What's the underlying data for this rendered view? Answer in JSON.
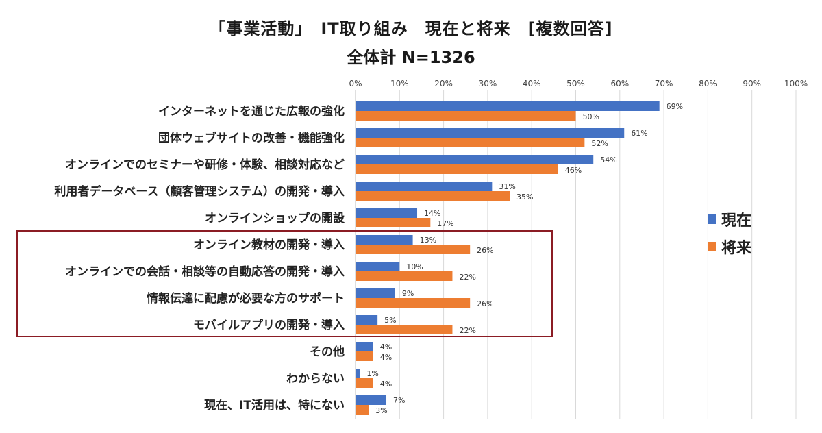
{
  "chart_data": {
    "type": "bar",
    "orientation": "horizontal",
    "title": "「事業活動」　IT取り組み　現在と将来　[複数回答]",
    "subtitle": "全体計 N=1326",
    "categories": [
      "インターネットを通じた広報の強化",
      "団体ウェブサイトの改善・機能強化",
      "オンラインでのセミナーや研修・体験、相談対応など",
      "利用者データベース（顧客管理システム）の開発・導入",
      "オンラインショップの開設",
      "オンライン教材の開発・導入",
      "オンラインでの会話・相談等の自動応答の開発・導入",
      "情報伝達に配慮が必要な方のサポート",
      "モバイルアプリの開発・導入",
      "その他",
      "わからない",
      "現在、IT活用は、特にない"
    ],
    "series": [
      {
        "name": "現在",
        "color": "#4472c4",
        "values": [
          69,
          61,
          54,
          31,
          14,
          13,
          10,
          9,
          5,
          4,
          1,
          7
        ]
      },
      {
        "name": "将来",
        "color": "#ed7d31",
        "values": [
          50,
          52,
          46,
          35,
          17,
          26,
          22,
          26,
          22,
          4,
          4,
          3
        ]
      }
    ],
    "value_labels": {
      "current": [
        "69%",
        "61%",
        "54%",
        "31%",
        "14%",
        "13%",
        "10%",
        "9%",
        "5%",
        "4%",
        "1%",
        "7%"
      ],
      "future": [
        "50%",
        "52%",
        "46%",
        "35%",
        "17%",
        "26%",
        "22%",
        "26%",
        "22%",
        "4%",
        "4%",
        "3%"
      ]
    },
    "xlim": [
      0,
      100
    ],
    "x_ticks": [
      0,
      10,
      20,
      30,
      40,
      50,
      60,
      70,
      80,
      90,
      100
    ],
    "x_tick_labels": [
      "0%",
      "10%",
      "20%",
      "30%",
      "40%",
      "50%",
      "60%",
      "70%",
      "80%",
      "90%",
      "100%"
    ],
    "grid": true,
    "legend_position": "right",
    "highlighted_categories": [
      5,
      6,
      7,
      8
    ],
    "highlight_color": "#8b1c24"
  }
}
